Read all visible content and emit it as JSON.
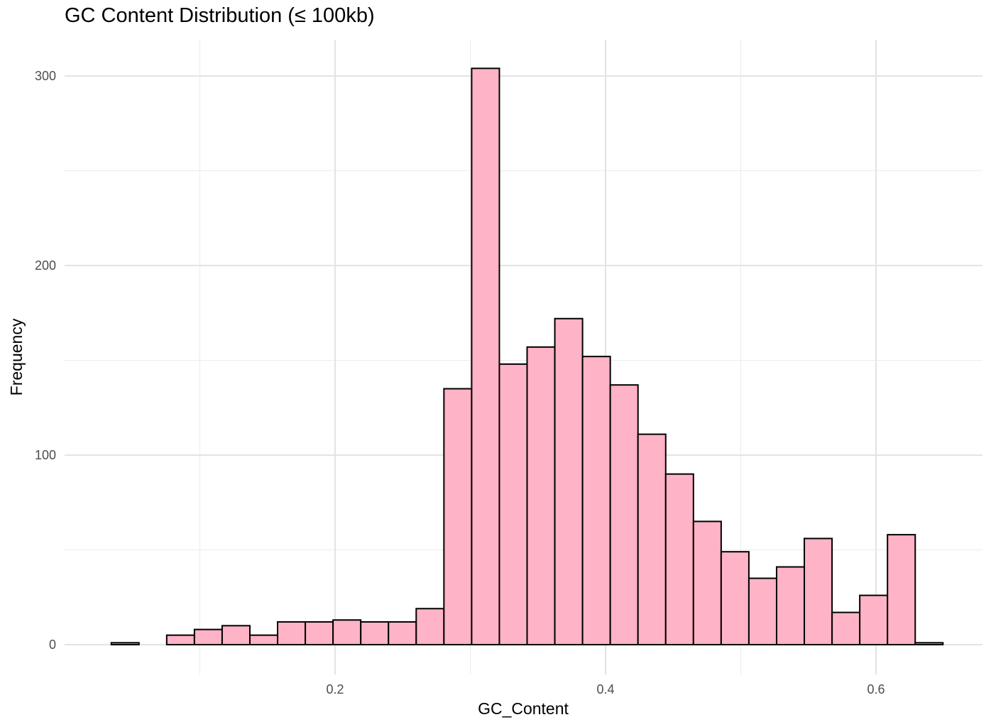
{
  "chart_data": {
    "type": "bar",
    "title": "GC Content Distribution (≤ 100kb)",
    "xlabel": "GC_Content",
    "ylabel": "Frequency",
    "xlim": [
      0.025,
      0.67
    ],
    "ylim": [
      -15,
      320
    ],
    "x_ticks": [
      {
        "value": 0.2,
        "label": "0.2"
      },
      {
        "value": 0.4,
        "label": "0.4"
      },
      {
        "value": 0.6,
        "label": "0.6"
      }
    ],
    "x_minor_ticks": [
      0.1,
      0.3,
      0.5
    ],
    "y_ticks": [
      {
        "value": 0,
        "label": "0"
      },
      {
        "value": 100,
        "label": "100"
      },
      {
        "value": 200,
        "label": "200"
      },
      {
        "value": 300,
        "label": "300"
      }
    ],
    "y_minor_ticks": [
      50,
      150,
      250
    ],
    "bin_width": 0.0205,
    "bin_start": 0.0345,
    "values": [
      1,
      0,
      5,
      8,
      10,
      5,
      12,
      12,
      13,
      12,
      12,
      19,
      135,
      304,
      148,
      157,
      172,
      152,
      137,
      111,
      90,
      65,
      49,
      35,
      41,
      56,
      17,
      26,
      58,
      1
    ],
    "fill_color": "#FFB3C6",
    "stroke_color": "#000000",
    "grid": true
  }
}
